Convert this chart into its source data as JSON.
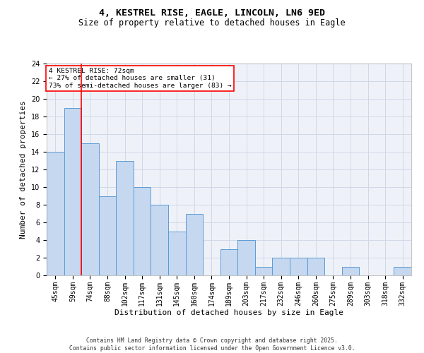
{
  "title1": "4, KESTREL RISE, EAGLE, LINCOLN, LN6 9ED",
  "title2": "Size of property relative to detached houses in Eagle",
  "xlabel": "Distribution of detached houses by size in Eagle",
  "ylabel": "Number of detached properties",
  "categories": [
    "45sqm",
    "59sqm",
    "74sqm",
    "88sqm",
    "102sqm",
    "117sqm",
    "131sqm",
    "145sqm",
    "160sqm",
    "174sqm",
    "189sqm",
    "203sqm",
    "217sqm",
    "232sqm",
    "246sqm",
    "260sqm",
    "275sqm",
    "289sqm",
    "303sqm",
    "318sqm",
    "332sqm"
  ],
  "values": [
    14,
    19,
    15,
    9,
    13,
    10,
    8,
    5,
    7,
    0,
    3,
    4,
    1,
    2,
    2,
    2,
    0,
    1,
    0,
    0,
    1
  ],
  "bar_color": "#c5d8f0",
  "bar_edge_color": "#5b9bd5",
  "red_line_x": 1.5,
  "annotation_text": "4 KESTREL RISE: 72sqm\n← 27% of detached houses are smaller (31)\n73% of semi-detached houses are larger (83) →",
  "annotation_box_color": "white",
  "annotation_box_edge": "red",
  "ylim": [
    0,
    24
  ],
  "yticks": [
    0,
    2,
    4,
    6,
    8,
    10,
    12,
    14,
    16,
    18,
    20,
    22,
    24
  ],
  "grid_color": "#d0d8e8",
  "background_color": "#eef2f8",
  "footer": "Contains HM Land Registry data © Crown copyright and database right 2025.\nContains public sector information licensed under the Open Government Licence v3.0.",
  "title_fontsize": 9.5,
  "subtitle_fontsize": 8.5,
  "tick_fontsize": 7,
  "ylabel_fontsize": 8,
  "xlabel_fontsize": 8,
  "annotation_fontsize": 6.8,
  "footer_fontsize": 5.8
}
